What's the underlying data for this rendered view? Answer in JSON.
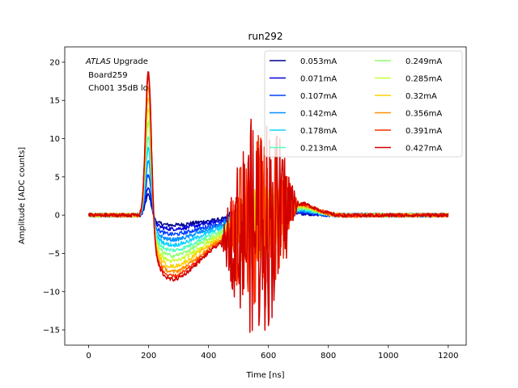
{
  "chart_data": {
    "type": "line",
    "title": "run292",
    "xlabel": "Time [ns]",
    "ylabel": "Amplitude [ADC counts]",
    "xlim": [
      -80,
      1260
    ],
    "ylim": [
      -17,
      22
    ],
    "xticks": [
      0,
      200,
      400,
      600,
      800,
      1000,
      1200
    ],
    "yticks": [
      -15,
      -10,
      -5,
      0,
      5,
      10,
      15,
      20
    ],
    "grid": false,
    "legend_position": "top-right",
    "legend_columns": 2,
    "annotation": {
      "italic": "ATLAS",
      "rest": " Upgrade",
      "line2": " Board259",
      "line3": " Ch001 35dB lo"
    },
    "series": [
      {
        "name": "0.053mA",
        "color": "#00008f",
        "peak": 2.8,
        "undershoot": -1.3
      },
      {
        "name": "0.071mA",
        "color": "#0000e0",
        "peak": 3.8,
        "undershoot": -1.8
      },
      {
        "name": "0.107mA",
        "color": "#0040ff",
        "peak": 5.6,
        "undershoot": -2.5
      },
      {
        "name": "0.142mA",
        "color": "#0090ff",
        "peak": 7.4,
        "undershoot": -3.2
      },
      {
        "name": "0.178mA",
        "color": "#10d0ff",
        "peak": 9.2,
        "undershoot": -3.9
      },
      {
        "name": "0.213mA",
        "color": "#50ffc0",
        "peak": 11.0,
        "undershoot": -4.6
      },
      {
        "name": "0.249mA",
        "color": "#90ff70",
        "peak": 12.9,
        "undershoot": -5.3
      },
      {
        "name": "0.285mA",
        "color": "#c8ff30",
        "peak": 14.6,
        "undershoot": -6.0
      },
      {
        "name": "0.32mA",
        "color": "#ffd000",
        "peak": 16.3,
        "undershoot": -6.7
      },
      {
        "name": "0.356mA",
        "color": "#ff9000",
        "peak": 17.9,
        "undershoot": -7.4
      },
      {
        "name": "0.391mA",
        "color": "#ff3000",
        "peak": 19.3,
        "undershoot": -8.0
      },
      {
        "name": "0.427mA",
        "color": "#d00000",
        "peak": 20.0,
        "undershoot": -8.4
      }
    ]
  }
}
